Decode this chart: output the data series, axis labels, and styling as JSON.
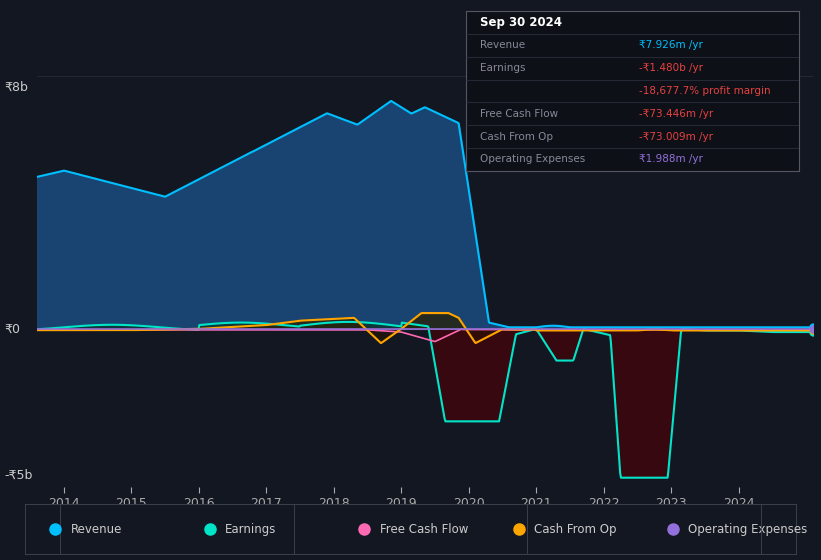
{
  "background_color": "#131722",
  "plot_bg_color": "#131722",
  "grid_color": "#2a2e39",
  "y_label_top": "₹8b",
  "y_label_zero": "₹0",
  "y_label_bottom": "-₹5b",
  "line_colors": {
    "revenue": "#00bfff",
    "earnings": "#00e5c8",
    "free_cash_flow": "#ff69b4",
    "cash_from_op": "#ffa500",
    "operating_expenses": "#9370db"
  },
  "legend_items": [
    {
      "label": "Revenue",
      "color": "#00bfff"
    },
    {
      "label": "Earnings",
      "color": "#00e5c8"
    },
    {
      "label": "Free Cash Flow",
      "color": "#ff69b4"
    },
    {
      "label": "Cash From Op",
      "color": "#ffa500"
    },
    {
      "label": "Operating Expenses",
      "color": "#9370db"
    }
  ],
  "ylim": [
    -5.0,
    8.0
  ],
  "xlim": [
    2013.6,
    2025.1
  ]
}
